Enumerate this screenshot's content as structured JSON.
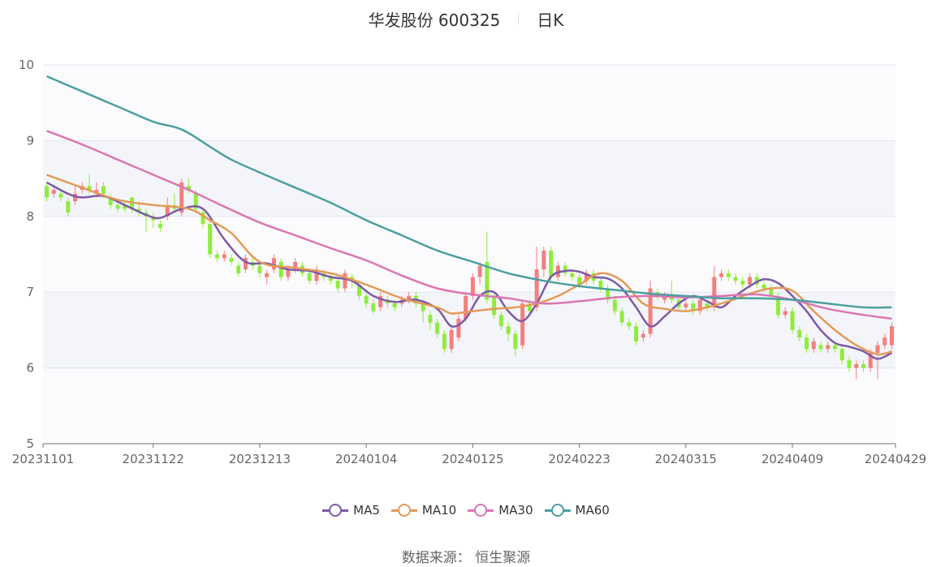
{
  "title": {
    "stock": "华发股份 600325",
    "period": "日K"
  },
  "source_text": "数据来源： 恒生聚源",
  "colors": {
    "up": "#f47f7f",
    "down": "#8eed3c",
    "MA5": "#7d5aa6",
    "MA10": "#e49a56",
    "MA30": "#db76b2",
    "MA60": "#4c9f9f",
    "band": "#f4f5fa",
    "grid": "#e0e6f1"
  },
  "chart_data": {
    "type": "candlestick",
    "title": "华发股份 600325",
    "period": "日K",
    "ylim": [
      5,
      10
    ],
    "yticks": [
      "5",
      "6",
      "7",
      "8",
      "9",
      "10"
    ],
    "x_tick_labels": [
      "20231101",
      "20231122",
      "20231213",
      "20240104",
      "20240125",
      "20240223",
      "20240315",
      "20240409",
      "20240429"
    ],
    "x_tick_index": [
      0,
      15,
      30,
      45,
      60,
      75,
      90,
      105,
      119
    ],
    "count": 120,
    "grid": true,
    "legend_position": "bottom",
    "series_names": [
      "MA5",
      "MA10",
      "MA30",
      "MA60"
    ],
    "ohlc": [
      [
        8.4,
        8.25,
        8.45,
        8.2
      ],
      [
        8.3,
        8.35,
        8.4,
        8.25
      ],
      [
        8.3,
        8.25,
        8.35,
        8.2
      ],
      [
        8.2,
        8.05,
        8.25,
        8.0
      ],
      [
        8.2,
        8.3,
        8.4,
        8.15
      ],
      [
        8.35,
        8.4,
        8.45,
        8.3
      ],
      [
        8.4,
        8.35,
        8.55,
        8.3
      ],
      [
        8.3,
        8.35,
        8.45,
        8.25
      ],
      [
        8.4,
        8.3,
        8.45,
        8.25
      ],
      [
        8.25,
        8.15,
        8.3,
        8.1
      ],
      [
        8.15,
        8.1,
        8.2,
        8.05
      ],
      [
        8.15,
        8.1,
        8.2,
        8.05
      ],
      [
        8.25,
        8.1,
        8.25,
        8.05
      ],
      [
        8.1,
        8.05,
        8.2,
        8.0
      ],
      [
        8.05,
        8.0,
        8.1,
        7.8
      ],
      [
        8.0,
        7.95,
        8.05,
        7.85
      ],
      [
        7.9,
        7.85,
        7.95,
        7.8
      ],
      [
        8.0,
        8.15,
        8.25,
        7.95
      ],
      [
        8.15,
        8.1,
        8.3,
        8.05
      ],
      [
        8.05,
        8.45,
        8.5,
        8.0
      ],
      [
        8.4,
        8.35,
        8.5,
        8.3
      ],
      [
        8.3,
        8.1,
        8.35,
        8.05
      ],
      [
        8.05,
        7.9,
        8.1,
        7.85
      ],
      [
        7.9,
        7.5,
        7.95,
        7.45
      ],
      [
        7.5,
        7.45,
        7.55,
        7.4
      ],
      [
        7.45,
        7.5,
        7.55,
        7.4
      ],
      [
        7.45,
        7.4,
        7.5,
        7.35
      ],
      [
        7.35,
        7.25,
        7.4,
        7.2
      ],
      [
        7.3,
        7.45,
        7.5,
        7.25
      ],
      [
        7.4,
        7.35,
        7.45,
        7.3
      ],
      [
        7.35,
        7.25,
        7.4,
        7.2
      ],
      [
        7.2,
        7.25,
        7.3,
        7.1
      ],
      [
        7.3,
        7.45,
        7.5,
        7.25
      ],
      [
        7.4,
        7.2,
        7.45,
        7.15
      ],
      [
        7.2,
        7.3,
        7.35,
        7.15
      ],
      [
        7.3,
        7.4,
        7.45,
        7.25
      ],
      [
        7.35,
        7.25,
        7.4,
        7.2
      ],
      [
        7.25,
        7.15,
        7.3,
        7.1
      ],
      [
        7.15,
        7.3,
        7.35,
        7.1
      ],
      [
        7.25,
        7.2,
        7.3,
        7.15
      ],
      [
        7.2,
        7.15,
        7.25,
        7.1
      ],
      [
        7.15,
        7.05,
        7.2,
        7.0
      ],
      [
        7.05,
        7.25,
        7.3,
        7.0
      ],
      [
        7.2,
        7.15,
        7.25,
        7.05
      ],
      [
        7.1,
        6.95,
        7.15,
        6.9
      ],
      [
        6.95,
        6.85,
        7.0,
        6.8
      ],
      [
        6.85,
        6.75,
        6.9,
        6.7
      ],
      [
        6.8,
        6.95,
        7.0,
        6.75
      ],
      [
        6.9,
        6.85,
        6.95,
        6.8
      ],
      [
        6.85,
        6.8,
        6.9,
        6.75
      ],
      [
        6.85,
        6.9,
        6.95,
        6.8
      ],
      [
        6.9,
        6.95,
        7.0,
        6.85
      ],
      [
        6.95,
        6.85,
        7.0,
        6.8
      ],
      [
        6.85,
        6.75,
        6.9,
        6.6
      ],
      [
        6.7,
        6.6,
        6.75,
        6.5
      ],
      [
        6.6,
        6.45,
        6.65,
        6.4
      ],
      [
        6.45,
        6.25,
        6.5,
        6.2
      ],
      [
        6.25,
        6.5,
        6.55,
        6.2
      ],
      [
        6.4,
        6.65,
        6.7,
        6.35
      ],
      [
        6.65,
        6.95,
        7.0,
        6.6
      ],
      [
        6.95,
        7.2,
        7.25,
        6.9
      ],
      [
        7.2,
        7.35,
        7.4,
        7.1
      ],
      [
        7.4,
        6.9,
        7.8,
        6.85
      ],
      [
        6.95,
        6.7,
        7.0,
        6.65
      ],
      [
        6.7,
        6.55,
        6.75,
        6.5
      ],
      [
        6.55,
        6.45,
        6.6,
        6.35
      ],
      [
        6.45,
        6.25,
        6.5,
        6.15
      ],
      [
        6.3,
        6.85,
        6.9,
        6.25
      ],
      [
        6.85,
        6.75,
        6.9,
        6.7
      ],
      [
        6.8,
        7.3,
        7.6,
        6.75
      ],
      [
        7.3,
        7.55,
        7.6,
        7.2
      ],
      [
        7.55,
        7.2,
        7.6,
        7.15
      ],
      [
        7.2,
        7.35,
        7.4,
        7.15
      ],
      [
        7.35,
        7.25,
        7.4,
        7.2
      ],
      [
        7.25,
        7.2,
        7.3,
        7.15
      ],
      [
        7.2,
        7.1,
        7.25,
        7.05
      ],
      [
        7.15,
        7.25,
        7.3,
        7.1
      ],
      [
        7.25,
        7.15,
        7.3,
        7.1
      ],
      [
        7.15,
        7.05,
        7.2,
        7.0
      ],
      [
        7.05,
        6.9,
        7.1,
        6.85
      ],
      [
        6.9,
        6.75,
        6.95,
        6.7
      ],
      [
        6.75,
        6.6,
        6.8,
        6.55
      ],
      [
        6.6,
        6.55,
        6.65,
        6.5
      ],
      [
        6.55,
        6.35,
        6.6,
        6.3
      ],
      [
        6.4,
        6.45,
        6.5,
        6.35
      ],
      [
        6.45,
        7.05,
        7.15,
        6.4
      ],
      [
        7.0,
        6.95,
        7.05,
        6.9
      ],
      [
        6.9,
        6.95,
        7.0,
        6.85
      ],
      [
        6.95,
        6.9,
        7.15,
        6.85
      ],
      [
        6.9,
        6.8,
        6.95,
        6.75
      ],
      [
        6.8,
        6.85,
        6.9,
        6.75
      ],
      [
        6.85,
        6.75,
        6.9,
        6.7
      ],
      [
        6.75,
        6.9,
        6.95,
        6.7
      ],
      [
        6.85,
        6.8,
        6.9,
        6.75
      ],
      [
        6.8,
        7.2,
        7.35,
        6.75
      ],
      [
        7.2,
        7.25,
        7.3,
        7.15
      ],
      [
        7.25,
        7.2,
        7.3,
        7.15
      ],
      [
        7.2,
        7.15,
        7.25,
        7.1
      ],
      [
        7.15,
        7.1,
        7.2,
        7.05
      ],
      [
        7.1,
        7.2,
        7.25,
        7.05
      ],
      [
        7.2,
        7.1,
        7.25,
        7.05
      ],
      [
        7.1,
        7.05,
        7.15,
        7.0
      ],
      [
        7.05,
        6.95,
        7.1,
        6.9
      ],
      [
        6.95,
        6.7,
        7.0,
        6.65
      ],
      [
        6.7,
        6.75,
        6.8,
        6.65
      ],
      [
        6.75,
        6.5,
        6.8,
        6.45
      ],
      [
        6.5,
        6.4,
        6.55,
        6.35
      ],
      [
        6.4,
        6.25,
        6.45,
        6.2
      ],
      [
        6.25,
        6.35,
        6.4,
        6.2
      ],
      [
        6.3,
        6.25,
        6.35,
        6.2
      ],
      [
        6.25,
        6.3,
        6.35,
        6.2
      ],
      [
        6.3,
        6.25,
        6.35,
        6.2
      ],
      [
        6.25,
        6.1,
        6.3,
        6.05
      ],
      [
        6.1,
        6.0,
        6.15,
        5.95
      ],
      [
        6.0,
        6.05,
        6.1,
        5.85
      ],
      [
        6.05,
        6.0,
        6.1,
        5.95
      ],
      [
        6.0,
        6.2,
        6.25,
        5.95
      ],
      [
        6.2,
        6.3,
        6.35,
        5.85
      ],
      [
        6.3,
        6.4,
        6.45,
        6.25
      ],
      [
        6.3,
        6.55,
        6.6,
        6.25
      ]
    ],
    "series": [
      {
        "name": "MA5",
        "anchors": [
          [
            0,
            8.45
          ],
          [
            3,
            8.3
          ],
          [
            5,
            8.25
          ],
          [
            8,
            8.27
          ],
          [
            11,
            8.15
          ],
          [
            14,
            8.02
          ],
          [
            16,
            7.98
          ],
          [
            19,
            8.1
          ],
          [
            22,
            8.1
          ],
          [
            25,
            7.7
          ],
          [
            28,
            7.4
          ],
          [
            31,
            7.38
          ],
          [
            34,
            7.3
          ],
          [
            37,
            7.28
          ],
          [
            40,
            7.2
          ],
          [
            43,
            7.15
          ],
          [
            46,
            6.95
          ],
          [
            49,
            6.87
          ],
          [
            52,
            6.9
          ],
          [
            55,
            6.78
          ],
          [
            57,
            6.55
          ],
          [
            59,
            6.65
          ],
          [
            61,
            6.95
          ],
          [
            63,
            7.0
          ],
          [
            65,
            6.75
          ],
          [
            67,
            6.62
          ],
          [
            69,
            6.85
          ],
          [
            71,
            7.2
          ],
          [
            73,
            7.28
          ],
          [
            75,
            7.27
          ],
          [
            77,
            7.2
          ],
          [
            79,
            7.18
          ],
          [
            81,
            7.05
          ],
          [
            83,
            6.8
          ],
          [
            85,
            6.55
          ],
          [
            87,
            6.68
          ],
          [
            89,
            6.85
          ],
          [
            91,
            6.95
          ],
          [
            93,
            6.88
          ],
          [
            95,
            6.8
          ],
          [
            97,
            6.95
          ],
          [
            99,
            7.08
          ],
          [
            101,
            7.17
          ],
          [
            103,
            7.12
          ],
          [
            105,
            6.95
          ],
          [
            107,
            6.75
          ],
          [
            109,
            6.5
          ],
          [
            111,
            6.33
          ],
          [
            113,
            6.28
          ],
          [
            115,
            6.22
          ],
          [
            117,
            6.12
          ],
          [
            119,
            6.2
          ]
        ]
      },
      {
        "name": "MA10",
        "anchors": [
          [
            0,
            8.55
          ],
          [
            5,
            8.38
          ],
          [
            10,
            8.22
          ],
          [
            15,
            8.15
          ],
          [
            20,
            8.1
          ],
          [
            23,
            7.95
          ],
          [
            26,
            7.78
          ],
          [
            30,
            7.4
          ],
          [
            35,
            7.32
          ],
          [
            40,
            7.25
          ],
          [
            45,
            7.1
          ],
          [
            50,
            6.92
          ],
          [
            55,
            6.8
          ],
          [
            57,
            6.72
          ],
          [
            60,
            6.75
          ],
          [
            63,
            6.78
          ],
          [
            66,
            6.8
          ],
          [
            69,
            6.85
          ],
          [
            72,
            6.95
          ],
          [
            75,
            7.1
          ],
          [
            78,
            7.25
          ],
          [
            81,
            7.15
          ],
          [
            84,
            6.85
          ],
          [
            87,
            6.78
          ],
          [
            90,
            6.75
          ],
          [
            93,
            6.8
          ],
          [
            96,
            6.88
          ],
          [
            99,
            6.98
          ],
          [
            102,
            7.05
          ],
          [
            105,
            7.02
          ],
          [
            108,
            6.75
          ],
          [
            111,
            6.5
          ],
          [
            114,
            6.3
          ],
          [
            117,
            6.18
          ],
          [
            119,
            6.22
          ]
        ]
      },
      {
        "name": "MA30",
        "anchors": [
          [
            0,
            9.13
          ],
          [
            5,
            8.95
          ],
          [
            10,
            8.75
          ],
          [
            15,
            8.55
          ],
          [
            20,
            8.35
          ],
          [
            25,
            8.13
          ],
          [
            30,
            7.92
          ],
          [
            35,
            7.75
          ],
          [
            40,
            7.58
          ],
          [
            45,
            7.42
          ],
          [
            50,
            7.22
          ],
          [
            55,
            7.05
          ],
          [
            60,
            6.97
          ],
          [
            65,
            6.92
          ],
          [
            70,
            6.85
          ],
          [
            75,
            6.88
          ],
          [
            80,
            6.93
          ],
          [
            85,
            6.95
          ],
          [
            90,
            6.93
          ],
          [
            95,
            6.95
          ],
          [
            100,
            6.97
          ],
          [
            105,
            6.9
          ],
          [
            110,
            6.78
          ],
          [
            115,
            6.7
          ],
          [
            119,
            6.65
          ]
        ]
      },
      {
        "name": "MA60",
        "anchors": [
          [
            0,
            9.85
          ],
          [
            5,
            9.65
          ],
          [
            10,
            9.45
          ],
          [
            15,
            9.25
          ],
          [
            18,
            9.18
          ],
          [
            20,
            9.1
          ],
          [
            23,
            8.92
          ],
          [
            26,
            8.75
          ],
          [
            30,
            8.58
          ],
          [
            35,
            8.38
          ],
          [
            40,
            8.18
          ],
          [
            45,
            7.95
          ],
          [
            50,
            7.75
          ],
          [
            55,
            7.55
          ],
          [
            60,
            7.4
          ],
          [
            65,
            7.25
          ],
          [
            70,
            7.15
          ],
          [
            75,
            7.08
          ],
          [
            80,
            7.03
          ],
          [
            85,
            6.98
          ],
          [
            90,
            6.95
          ],
          [
            95,
            6.92
          ],
          [
            100,
            6.92
          ],
          [
            105,
            6.9
          ],
          [
            110,
            6.85
          ],
          [
            115,
            6.8
          ],
          [
            119,
            6.8
          ]
        ]
      }
    ]
  }
}
